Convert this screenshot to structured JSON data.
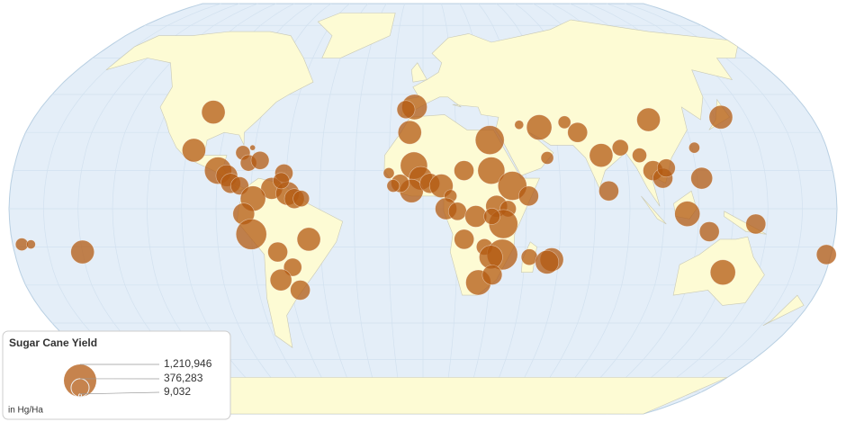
{
  "chart_data": {
    "type": "bubble-map",
    "title": "Sugar Cane Yield",
    "unit_label": "in Hg/Ha",
    "color": "#b35a12",
    "size_legend": [
      {
        "value": 1210946,
        "label": "1,210,946"
      },
      {
        "value": 376283,
        "label": "376,283"
      },
      {
        "value": 9032,
        "label": "9,032"
      }
    ],
    "points": {
      "lon": [
        -98,
        -102,
        -80,
        -77,
        -72,
        -76,
        -90,
        -86,
        -84,
        -80,
        -66,
        -74,
        -59,
        -56,
        -53,
        -78,
        -75,
        -50,
        -64,
        -58,
        -64,
        -56,
        -61,
        -62,
        -176,
        -172,
        -150,
        178,
        -4,
        -8,
        -6,
        30,
        44,
        53,
        65,
        70,
        79,
        88,
        96,
        101,
        104,
        138,
        121,
        122,
        105,
        107,
        115,
        145,
        81,
        125,
        55,
        18,
        30,
        39,
        -15,
        -4,
        -1,
        -5,
        -10,
        3,
        8,
        12,
        10,
        15,
        23,
        32,
        37,
        35,
        30,
        18,
        27,
        35,
        30,
        47,
        57,
        55,
        25,
        31,
        134,
        46,
        -13
      ],
      "lat": [
        38,
        23,
        22,
        18,
        19,
        24,
        15,
        13,
        10,
        9,
        8,
        4,
        6,
        4,
        4,
        -2,
        -10,
        -12,
        -17,
        -23,
        -28,
        -32,
        14,
        11,
        -14,
        -14,
        -17,
        -18,
        40,
        39,
        30,
        27,
        33,
        32,
        34,
        30,
        21,
        24,
        21,
        15,
        35,
        36,
        24,
        12,
        12,
        16,
        -2,
        -6,
        7,
        -9,
        20,
        15,
        15,
        9,
        14,
        17,
        12,
        7,
        10,
        10,
        9,
        5,
        0,
        -1,
        -3,
        1,
        0,
        -6,
        -3,
        -12,
        -15,
        -18,
        -19,
        -19,
        -20,
        -21,
        -29,
        -26,
        -25,
        5,
        9
      ],
      "values": [
        632000,
        632000,
        239000,
        303000,
        374000,
        34000,
        841000,
        538000,
        452000,
        374000,
        538000,
        732000,
        632000,
        452000,
        303000,
        538000,
        1080000,
        632000,
        452000,
        374000,
        538000,
        452000,
        374000,
        303000,
        183000,
        93000,
        632000,
        452000,
        732000,
        374000,
        632000,
        957000,
        93000,
        732000,
        183000,
        452000,
        632000,
        303000,
        239000,
        452000,
        632000,
        632000,
        135000,
        538000,
        452000,
        374000,
        732000,
        452000,
        452000,
        452000,
        183000,
        452000,
        841000,
        957000,
        135000,
        841000,
        632000,
        632000,
        374000,
        452000,
        632000,
        183000,
        538000,
        374000,
        538000,
        538000,
        303000,
        957000,
        303000,
        452000,
        303000,
        1080000,
        632000,
        303000,
        632000,
        632000,
        732000,
        452000,
        732000,
        452000,
        183000
      ]
    }
  }
}
